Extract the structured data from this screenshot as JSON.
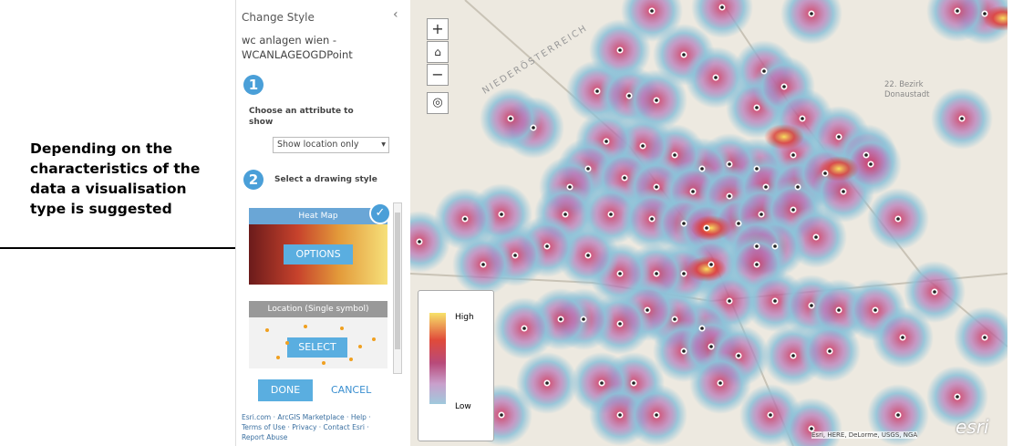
{
  "annotation": {
    "lines": [
      "Depending on the",
      "characteristics of the",
      "data a visualisation",
      "type is suggested"
    ]
  },
  "panel": {
    "title": "Change Style",
    "layer_name": [
      "wc anlagen wien -",
      "WCANLAGEOGDPoint"
    ],
    "steps": [
      {
        "number": "1",
        "label": [
          "Choose an attribute to",
          "show"
        ]
      },
      {
        "number": "2",
        "label": [
          "Select a drawing style"
        ]
      }
    ],
    "dropdown": "Show location only",
    "cards": [
      {
        "title": "Heat Map",
        "button": "OPTIONS"
      },
      {
        "title": "Location (Single symbol)",
        "button": "SELECT"
      }
    ],
    "buttons": [
      "DONE",
      "CANCEL"
    ],
    "footer": [
      "Esri.com · ArcGIS Marketplace · Help ·",
      "Terms of Use · Privacy · Contact Esri ·",
      "Report Abuse"
    ]
  },
  "map": {
    "zoom_in": "+",
    "zoom_out": "−",
    "labels": [
      "NIEDERÖSTERREICH",
      "22. Bezirk",
      "Donaustadt"
    ],
    "legend": {
      "high": "High",
      "low": "Low"
    },
    "attribution": "Esri, HERE, DeLorme, USGS, NGA",
    "logo": "esri"
  }
}
